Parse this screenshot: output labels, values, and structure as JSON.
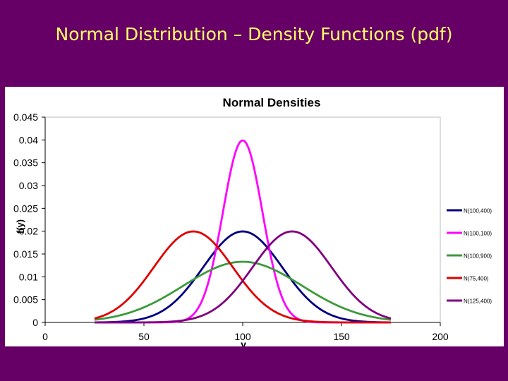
{
  "slide": {
    "title": "Normal Distribution – Density Functions (pdf)",
    "background": "#660066",
    "title_color": "#ffff66"
  },
  "chart_data": {
    "type": "line",
    "title": "Normal Densities",
    "xlabel": "y",
    "ylabel": "f(y)",
    "xlim": [
      0,
      200
    ],
    "ylim": [
      0,
      0.045
    ],
    "x_ticks": [
      0,
      50,
      100,
      150,
      200
    ],
    "y_ticks": [
      0,
      0.005,
      0.01,
      0.015,
      0.02,
      0.025,
      0.03,
      0.035,
      0.04,
      0.045
    ],
    "x_range": [
      25,
      175
    ],
    "grid": false,
    "legend_position": "right",
    "series": [
      {
        "name": "N(100,400)",
        "mean": 100,
        "variance": 400,
        "color": "#000080"
      },
      {
        "name": "N(100,100)",
        "mean": 100,
        "variance": 100,
        "color": "#ff00ff"
      },
      {
        "name": "N(100,900)",
        "mean": 100,
        "variance": 900,
        "color": "#3c9a3c"
      },
      {
        "name": "N(75,400)",
        "mean": 75,
        "variance": 400,
        "color": "#e00000"
      },
      {
        "name": "N(125,400)",
        "mean": 125,
        "variance": 400,
        "color": "#800080"
      }
    ]
  }
}
